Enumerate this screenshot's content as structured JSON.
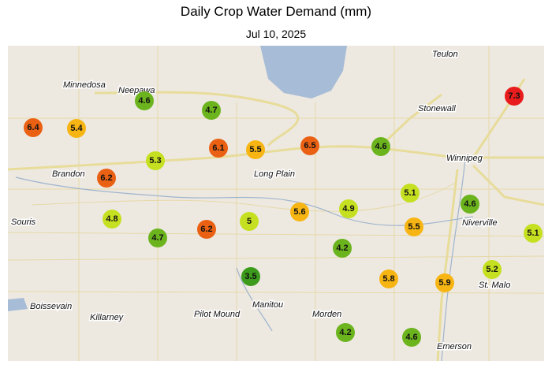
{
  "title": "Daily Crop Water Demand (mm)",
  "subtitle": "Jul 10, 2025",
  "places": [
    "Teulon",
    "Minnedosa",
    "Neepawa",
    "Stonewall",
    "Winnipeg",
    "Brandon",
    "Long Plain",
    "Souris",
    "Niverville",
    "Boissevain",
    "Killarney",
    "Pilot Mound",
    "Manitou",
    "Morden",
    "St. Malo",
    "Emerson"
  ],
  "stations": [
    {
      "value": 6.4,
      "color": "#ea6114"
    },
    {
      "value": 5.4,
      "color": "#f7b514"
    },
    {
      "value": 4.6,
      "color": "#6cb41e"
    },
    {
      "value": 4.7,
      "color": "#6cb41e"
    },
    {
      "value": 5.3,
      "color": "#c5e020"
    },
    {
      "value": 6.1,
      "color": "#ea6114"
    },
    {
      "value": 5.5,
      "color": "#f7b514"
    },
    {
      "value": 6.5,
      "color": "#ea6114"
    },
    {
      "value": 4.6,
      "color": "#6cb41e"
    },
    {
      "value": 7.3,
      "color": "#e81c1c"
    },
    {
      "value": 6.2,
      "color": "#ea6114"
    },
    {
      "value": 5.1,
      "color": "#c5e020"
    },
    {
      "value": 4.8,
      "color": "#c5e020"
    },
    {
      "value": 4.7,
      "color": "#6cb41e"
    },
    {
      "value": 6.2,
      "color": "#ea6114"
    },
    {
      "value": 5.0,
      "color": "#c5e020"
    },
    {
      "value": 5.6,
      "color": "#f7b514"
    },
    {
      "value": 4.9,
      "color": "#c5e020"
    },
    {
      "value": 4.6,
      "color": "#6cb41e"
    },
    {
      "value": 5.5,
      "color": "#f7b514"
    },
    {
      "value": 5.1,
      "color": "#c5e020"
    },
    {
      "value": 4.2,
      "color": "#6cb41e"
    },
    {
      "value": 3.5,
      "color": "#3c9a1c"
    },
    {
      "value": 5.8,
      "color": "#f7b514"
    },
    {
      "value": 5.9,
      "color": "#f7b514"
    },
    {
      "value": 5.2,
      "color": "#c5e020"
    },
    {
      "value": 4.2,
      "color": "#6cb41e"
    },
    {
      "value": 4.6,
      "color": "#6cb41e"
    }
  ]
}
